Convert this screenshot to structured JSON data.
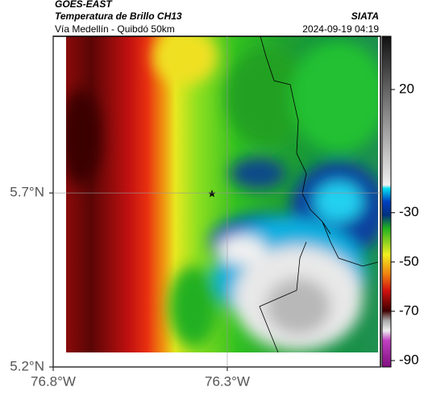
{
  "header": {
    "title": "GOES-EAST",
    "subtitle": "Temperatura de Brillo CH13",
    "route": "Vía Medellín - Quibdó 50km",
    "source": "SIATA",
    "datetime": "2024-09-19 04:19"
  },
  "map": {
    "xlim": [
      -76.8,
      -75.86
    ],
    "ylim": [
      5.2,
      6.15
    ],
    "xticks": [
      {
        "value": -76.8,
        "label": "76.8°W"
      },
      {
        "value": -76.3,
        "label": "76.3°W"
      }
    ],
    "yticks": [
      {
        "value": 5.2,
        "label": "5.2°N"
      },
      {
        "value": 5.7,
        "label": "5.7°N"
      }
    ],
    "grid": true,
    "colorbar": {
      "vlim": [
        -92.6,
        41.6
      ],
      "ticks": [
        20,
        -30,
        -50,
        -70,
        -90
      ]
    }
  }
}
